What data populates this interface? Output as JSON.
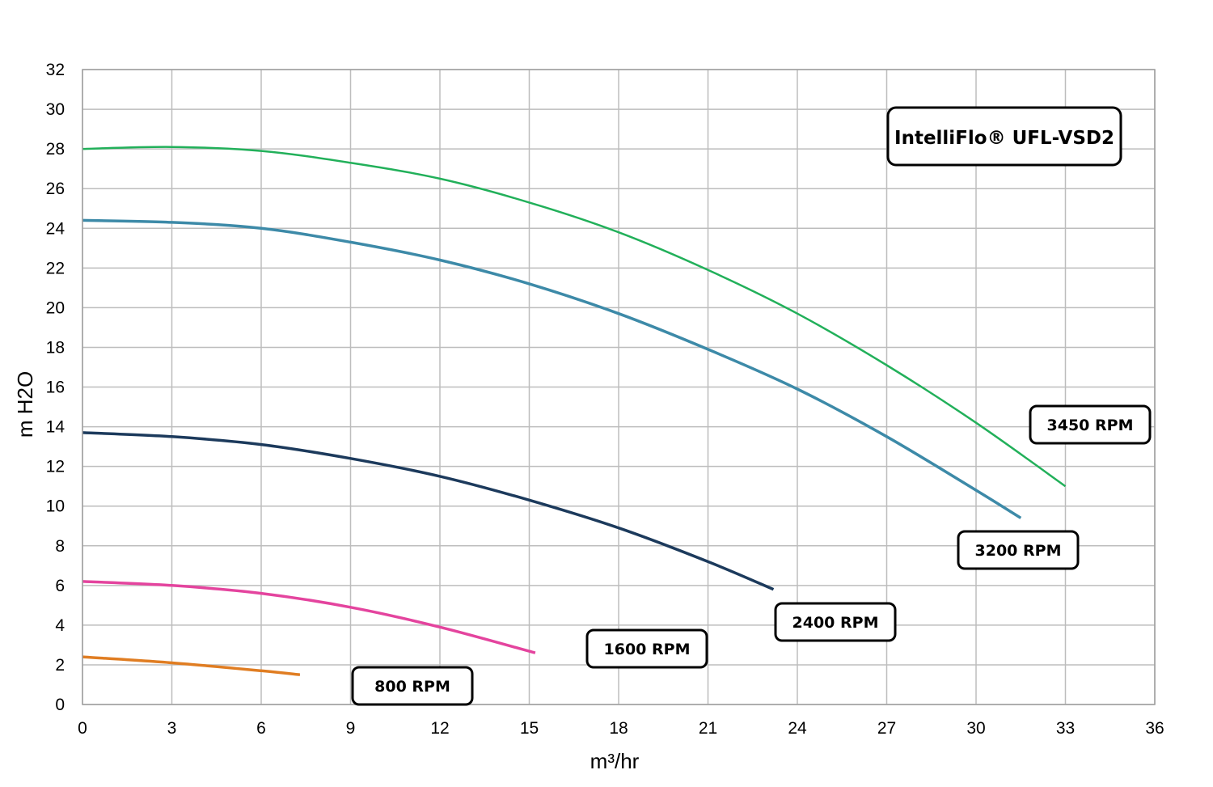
{
  "chart_data": {
    "type": "line",
    "title": "IntelliFlo® UFL-VSD2",
    "xlabel": "m³/hr",
    "ylabel": "m H2O",
    "xlim": [
      0,
      36
    ],
    "ylim": [
      0,
      32
    ],
    "x_ticks": [
      "0",
      "3",
      "6",
      "9",
      "12",
      "15",
      "18",
      "21",
      "24",
      "27",
      "30",
      "33",
      "36"
    ],
    "y_ticks": [
      "0",
      "2",
      "4",
      "6",
      "8",
      "10",
      "12",
      "14",
      "16",
      "18",
      "20",
      "22",
      "24",
      "26",
      "28",
      "30",
      "32"
    ],
    "grid": true,
    "series": [
      {
        "name": "3450 RPM",
        "color": "#22b05a",
        "x": [
          0,
          3,
          6,
          9,
          12,
          15,
          18,
          21,
          24,
          27,
          30,
          33
        ],
        "y": [
          28.0,
          28.1,
          27.9,
          27.3,
          26.5,
          25.3,
          23.8,
          21.9,
          19.7,
          17.1,
          14.2,
          11.0
        ]
      },
      {
        "name": "3200 RPM",
        "color": "#3d8aa8",
        "x": [
          0,
          3,
          6,
          9,
          12,
          15,
          18,
          21,
          24,
          27,
          30,
          31.5
        ],
        "y": [
          24.4,
          24.3,
          24.0,
          23.3,
          22.4,
          21.2,
          19.7,
          17.9,
          15.9,
          13.5,
          10.8,
          9.4
        ]
      },
      {
        "name": "2400 RPM",
        "color": "#1c3a5c",
        "x": [
          0,
          3,
          6,
          9,
          12,
          15,
          18,
          21,
          23.2
        ],
        "y": [
          13.7,
          13.5,
          13.1,
          12.4,
          11.5,
          10.3,
          8.9,
          7.2,
          5.8
        ]
      },
      {
        "name": "1600 RPM",
        "color": "#e4449e",
        "x": [
          0,
          3,
          6,
          9,
          12,
          15.2
        ],
        "y": [
          6.2,
          6.0,
          5.6,
          4.9,
          3.9,
          2.6
        ]
      },
      {
        "name": "800 RPM",
        "color": "#e07d22",
        "x": [
          0,
          3,
          6,
          7.3
        ],
        "y": [
          2.4,
          2.1,
          1.7,
          1.5
        ]
      }
    ]
  }
}
